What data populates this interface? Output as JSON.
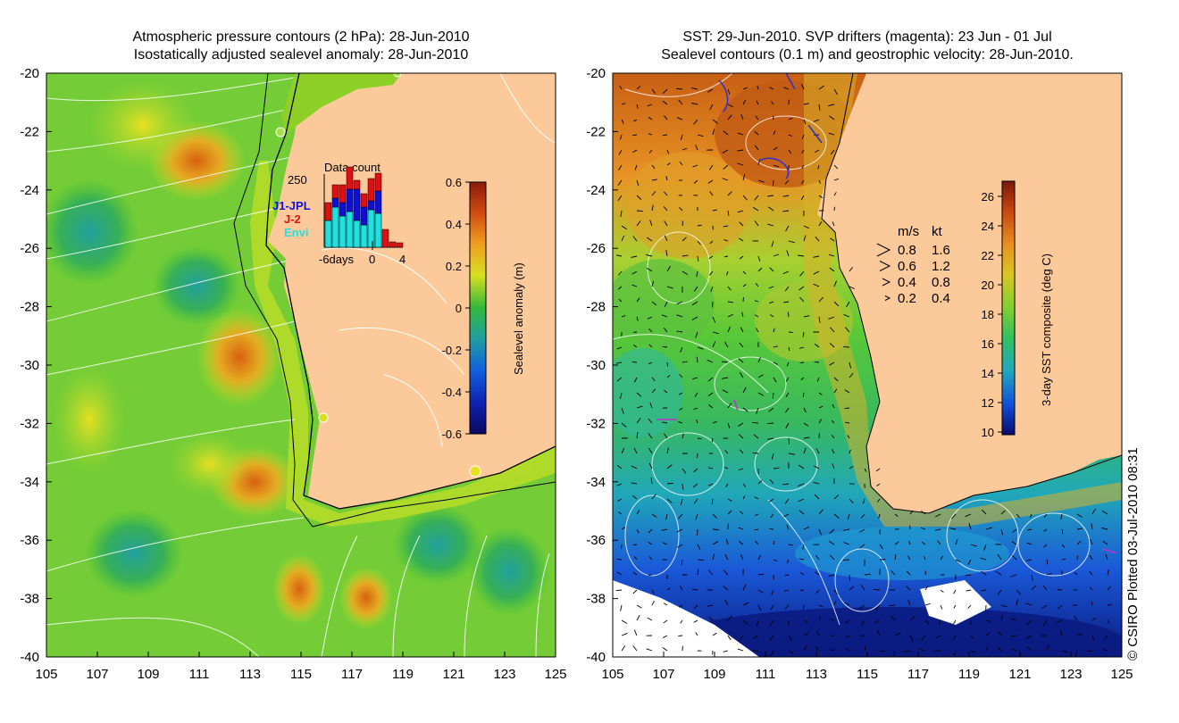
{
  "left_panel": {
    "title_line1": "Atmospheric pressure contours (2 hPa): 28-Jun-2010",
    "title_line2": "Isostatically adjusted sealevel anomaly: 28-Jun-2010",
    "y_ticks": [
      "-20",
      "-22",
      "-24",
      "-26",
      "-28",
      "-30",
      "-32",
      "-34",
      "-36",
      "-38",
      "-40"
    ],
    "x_ticks": [
      "105",
      "107",
      "109",
      "111",
      "113",
      "115",
      "117",
      "119",
      "121",
      "123",
      "125"
    ],
    "colorbar": {
      "label": "Sealevel anomaly (m)",
      "ticks": [
        "0.6",
        "0.4",
        "0.2",
        "0",
        "-0.2",
        "-0.4",
        "-0.6"
      ]
    },
    "inset": {
      "title": "Data count",
      "y_max_label": "250",
      "x_labels": [
        "-6days",
        "0",
        "4"
      ],
      "legend": [
        {
          "name": "J1-JPL",
          "color": "#1010d0"
        },
        {
          "name": "J-2",
          "color": "#e01010"
        },
        {
          "name": "Envi",
          "color": "#20e0e0"
        }
      ]
    }
  },
  "right_panel": {
    "title_line1": "SST: 29-Jun-2010. SVP drifters (magenta): 23 Jun - 01 Jul",
    "title_line2": "Sealevel contours (0.1 m) and geostrophic velocity: 28-Jun-2010.",
    "y_ticks": [
      "-20",
      "-22",
      "-24",
      "-26",
      "-28",
      "-30",
      "-32",
      "-34",
      "-36",
      "-38",
      "-40"
    ],
    "x_ticks": [
      "105",
      "107",
      "109",
      "111",
      "113",
      "115",
      "117",
      "119",
      "121",
      "123",
      "125"
    ],
    "colorbar": {
      "label": "3-day SST composite (deg C)",
      "ticks": [
        "26",
        "24",
        "22",
        "20",
        "18",
        "16",
        "14",
        "12",
        "10"
      ]
    },
    "velocity_legend": {
      "header_ms": "m/s",
      "header_kt": "kt",
      "rows": [
        {
          "ms": "0.8",
          "kt": "1.6"
        },
        {
          "ms": "0.6",
          "kt": "1.2"
        },
        {
          "ms": "0.4",
          "kt": "0.8"
        },
        {
          "ms": "0.2",
          "kt": "0.4"
        }
      ]
    }
  },
  "credit": "© CSIRO Plotted 03-Jul-2010 08:31",
  "colors": {
    "land": "#fcc99b",
    "sla_mid": "#33b83c",
    "sst_warm": "#e08a18"
  }
}
